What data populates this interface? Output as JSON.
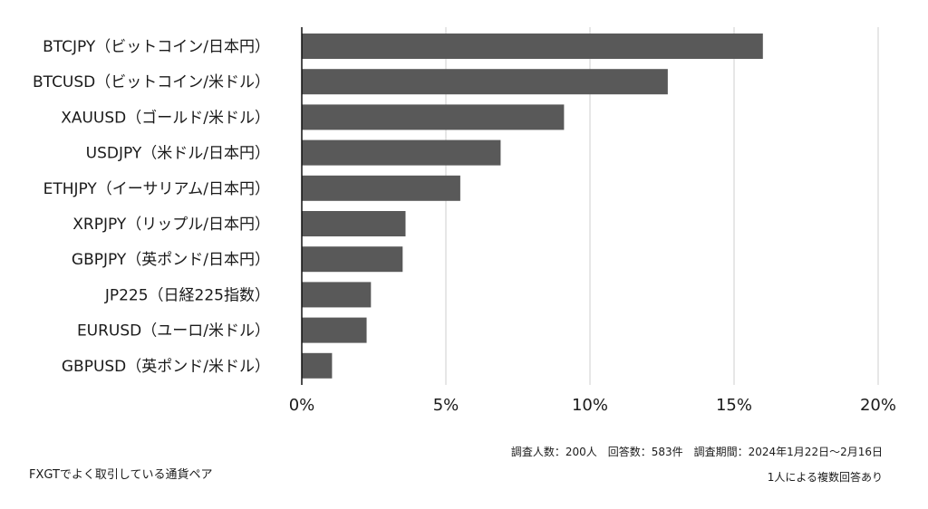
{
  "chart_data": {
    "type": "bar",
    "orientation": "horizontal",
    "categories": [
      "BTCJPY（ビットコイン/日本円）",
      "BTCUSD（ビットコイン/米ドル）",
      "XAUUSD（ゴールド/米ドル）",
      "USDJPY（米ドル/日本円）",
      "ETHJPY（イーサリアム/日本円）",
      "XRPJPY（リップル/日本円）",
      "GBPJPY（英ポンド/日本円）",
      "JP225（日経225指数）",
      "EURUSD（ユーロ/米ドル）",
      "GBPUSD（英ポンド/米ドル）"
    ],
    "values": [
      16.0,
      12.7,
      9.1,
      6.9,
      5.5,
      3.6,
      3.5,
      2.4,
      2.25,
      1.05
    ],
    "xlim": [
      0,
      20
    ],
    "xticks": [
      0,
      5,
      10,
      15,
      20
    ],
    "xtick_labels": [
      "0%",
      "5%",
      "10%",
      "15%",
      "20%"
    ],
    "grid": "vertical",
    "bar_color": "#595959"
  },
  "caption": "FXGTでよく取引している通貨ペア",
  "notes": {
    "survey": "調査人数：200人　回答数：583件　調査期間：2024年1月22日〜2月16日",
    "multiple": "1人による複数回答あり"
  }
}
